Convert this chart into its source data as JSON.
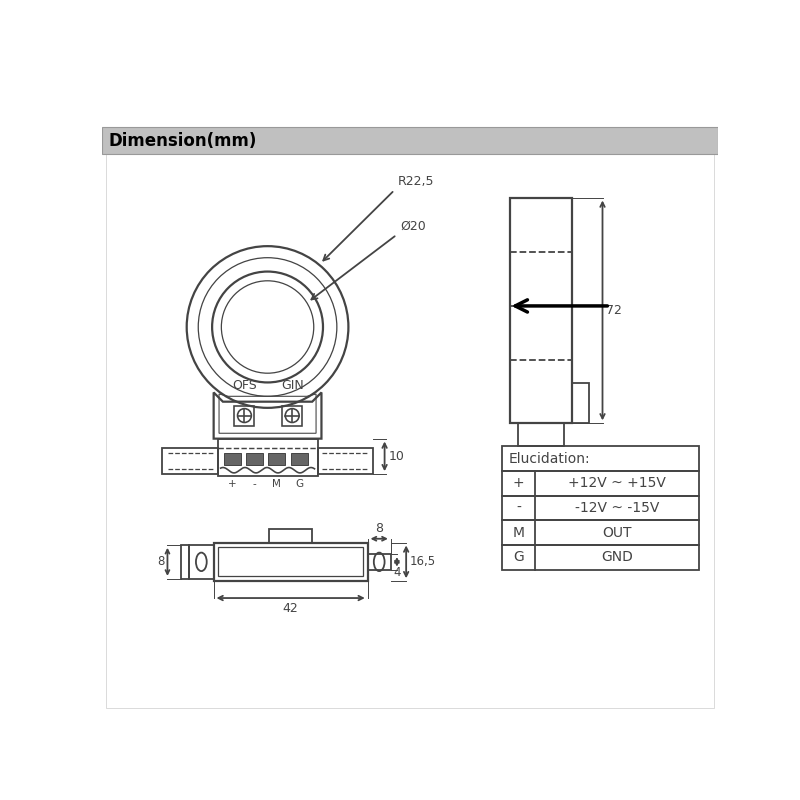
{
  "title": "Dimension(mm)",
  "title_bg": "#b0b0b0",
  "bg_color": "#ffffff",
  "line_color": "#444444",
  "table_data": {
    "header": "Elucidation:",
    "rows": [
      [
        "+",
        "+12V ~ +15V"
      ],
      [
        "-",
        "-12V ~ -15V"
      ],
      [
        "M",
        "OUT"
      ],
      [
        "G",
        "GND"
      ]
    ]
  },
  "dim_labels": {
    "R22_5": "R22,5",
    "dia20": "Ø20",
    "dim72": "72",
    "dim10": "10",
    "dim42": "42",
    "dim8": "8",
    "dim4": "4",
    "dim16_5": "16,5",
    "dim8_mount": "8"
  },
  "labels": {
    "OFS": "OFS",
    "GIN": "GIN",
    "plus": "+",
    "minus": "-",
    "M": "M",
    "G": "G"
  }
}
